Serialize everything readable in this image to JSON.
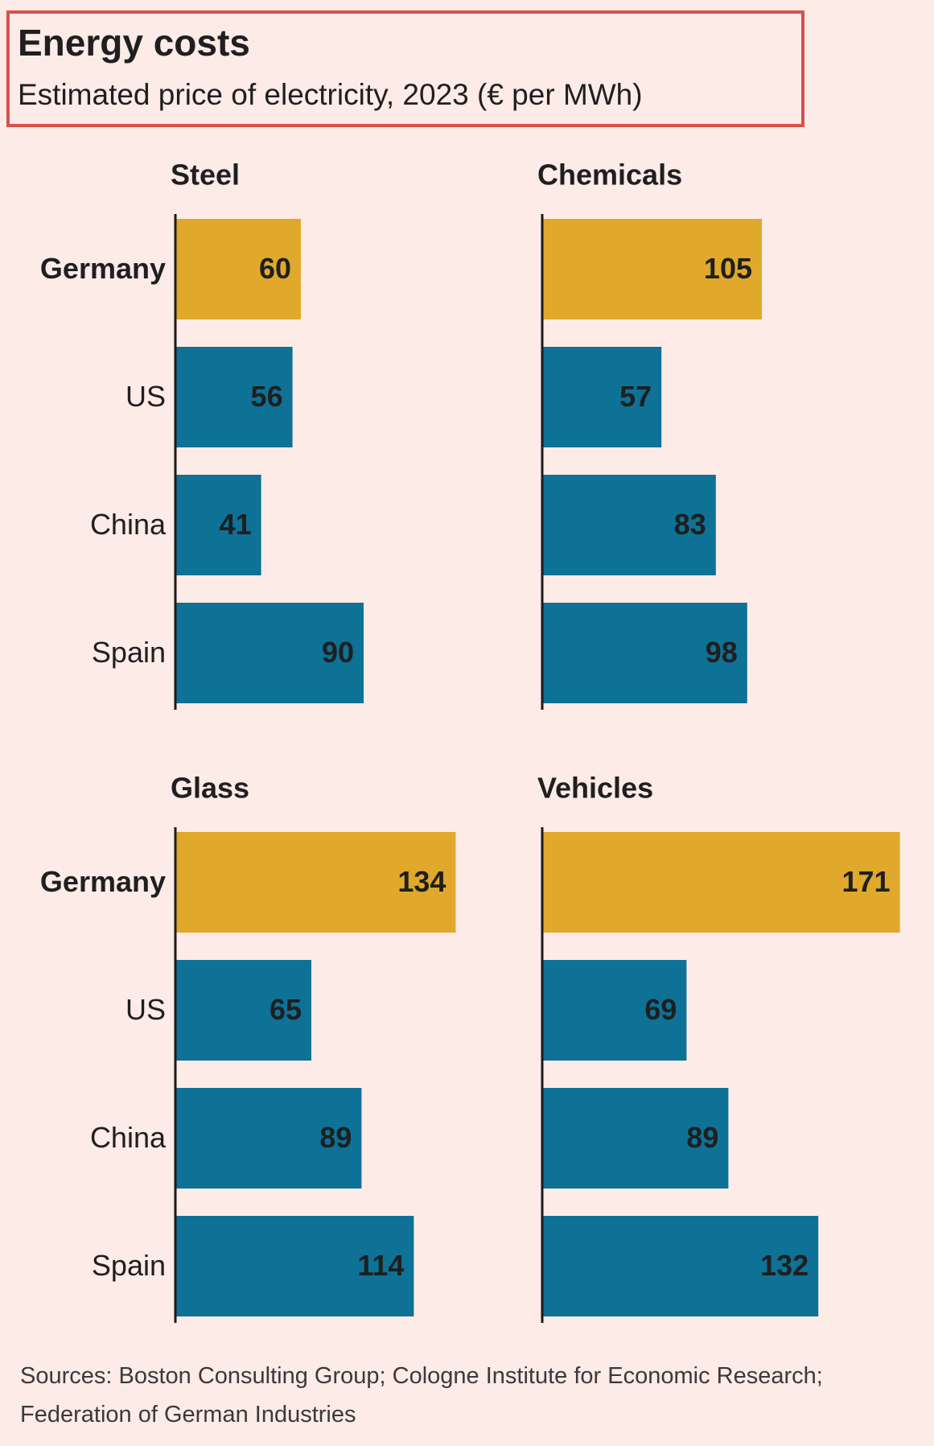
{
  "title": "Energy costs",
  "subtitle": "Estimated price of electricity, 2023 (€ per MWh)",
  "categories": [
    "Germany",
    "US",
    "China",
    "Spain"
  ],
  "chart_data": [
    {
      "type": "bar",
      "orientation": "horizontal",
      "title": "Steel",
      "values": [
        60,
        56,
        41,
        90
      ],
      "colors": [
        "#e0a92b",
        "#0e7196",
        "#0e7196",
        "#0e7196"
      ]
    },
    {
      "type": "bar",
      "orientation": "horizontal",
      "title": "Chemicals",
      "values": [
        105,
        57,
        83,
        98
      ],
      "colors": [
        "#e0a92b",
        "#0e7196",
        "#0e7196",
        "#0e7196"
      ]
    },
    {
      "type": "bar",
      "orientation": "horizontal",
      "title": "Glass",
      "values": [
        134,
        65,
        89,
        114
      ],
      "colors": [
        "#e0a92b",
        "#0e7196",
        "#0e7196",
        "#0e7196"
      ]
    },
    {
      "type": "bar",
      "orientation": "horizontal",
      "title": "Vehicles",
      "values": [
        171,
        69,
        89,
        132
      ],
      "colors": [
        "#e0a92b",
        "#0e7196",
        "#0e7196",
        "#0e7196"
      ]
    }
  ],
  "source": "Sources: Boston Consulting Group; Cologne Institute for Economic Research; Federation of German Industries"
}
